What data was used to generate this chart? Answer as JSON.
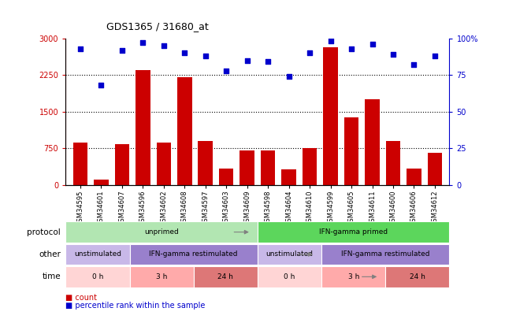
{
  "title": "GDS1365 / 31680_at",
  "samples": [
    "GSM34595",
    "GSM34601",
    "GSM34607",
    "GSM34596",
    "GSM34602",
    "GSM34608",
    "GSM34597",
    "GSM34603",
    "GSM34609",
    "GSM34598",
    "GSM34604",
    "GSM34610",
    "GSM34599",
    "GSM34605",
    "GSM34611",
    "GSM34600",
    "GSM34606",
    "GSM34612"
  ],
  "counts": [
    870,
    115,
    830,
    2350,
    870,
    2200,
    900,
    330,
    700,
    710,
    320,
    760,
    2820,
    1380,
    1750,
    900,
    330,
    660
  ],
  "percentiles": [
    93,
    68,
    92,
    97,
    95,
    90,
    88,
    78,
    85,
    84,
    74,
    90,
    98,
    93,
    96,
    89,
    82,
    88
  ],
  "bar_color": "#cc0000",
  "dot_color": "#0000cc",
  "ylim_left": [
    0,
    3000
  ],
  "ylim_right": [
    0,
    100
  ],
  "yticks_left": [
    0,
    750,
    1500,
    2250,
    3000
  ],
  "yticks_right": [
    0,
    25,
    50,
    75,
    100
  ],
  "grid_values": [
    750,
    1500,
    2250
  ],
  "protocol_labels": [
    {
      "text": "unprimed",
      "start": 0,
      "end": 9,
      "color": "#b2e6b2"
    },
    {
      "text": "IFN-gamma primed",
      "start": 9,
      "end": 18,
      "color": "#5cd65c"
    }
  ],
  "other_labels": [
    {
      "text": "unstimulated",
      "start": 0,
      "end": 3,
      "color": "#c8b8e8"
    },
    {
      "text": "IFN-gamma restimulated",
      "start": 3,
      "end": 9,
      "color": "#9980cc"
    },
    {
      "text": "unstimulated",
      "start": 9,
      "end": 12,
      "color": "#c8b8e8"
    },
    {
      "text": "IFN-gamma restimulated",
      "start": 12,
      "end": 18,
      "color": "#9980cc"
    }
  ],
  "time_labels": [
    {
      "text": "0 h",
      "start": 0,
      "end": 3,
      "color": "#ffd5d5"
    },
    {
      "text": "3 h",
      "start": 3,
      "end": 6,
      "color": "#ffaaaa"
    },
    {
      "text": "24 h",
      "start": 6,
      "end": 9,
      "color": "#dd7777"
    },
    {
      "text": "0 h",
      "start": 9,
      "end": 12,
      "color": "#ffd5d5"
    },
    {
      "text": "3 h",
      "start": 12,
      "end": 15,
      "color": "#ffaaaa"
    },
    {
      "text": "24 h",
      "start": 15,
      "end": 18,
      "color": "#dd7777"
    }
  ],
  "legend_count_color": "#cc0000",
  "legend_dot_color": "#0000cc",
  "left_axis_color": "#cc0000",
  "right_axis_color": "#0000cc",
  "bg_color": "#ffffff"
}
